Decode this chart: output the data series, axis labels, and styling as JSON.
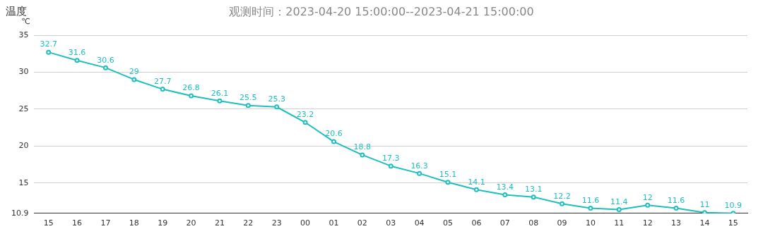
{
  "chart_data": {
    "type": "line",
    "title": "温度",
    "subtitle": "观测时间：2023-04-20 15:00:00--2023-04-21 15:00:00",
    "ylabel": "℃",
    "categories": [
      "15",
      "16",
      "17",
      "18",
      "19",
      "20",
      "21",
      "22",
      "23",
      "00",
      "01",
      "02",
      "03",
      "04",
      "05",
      "06",
      "07",
      "08",
      "09",
      "10",
      "11",
      "12",
      "13",
      "14",
      "15"
    ],
    "series": [
      {
        "color": "#1fbfbf",
        "values": [
          32.7,
          31.6,
          30.6,
          29,
          27.7,
          26.8,
          26.1,
          25.5,
          25.3,
          23.2,
          20.6,
          18.8,
          17.3,
          16.3,
          15.1,
          14.1,
          13.4,
          13.1,
          12.2,
          11.6,
          11.4,
          12,
          11.6,
          11,
          10.9
        ]
      }
    ],
    "ylim": [
      10.9,
      35
    ],
    "yticks": [
      10.9,
      15,
      20,
      25,
      30,
      35
    ],
    "grid": "y",
    "legend": false,
    "marker": "circle",
    "line_style": "solid",
    "data_labels": true
  }
}
